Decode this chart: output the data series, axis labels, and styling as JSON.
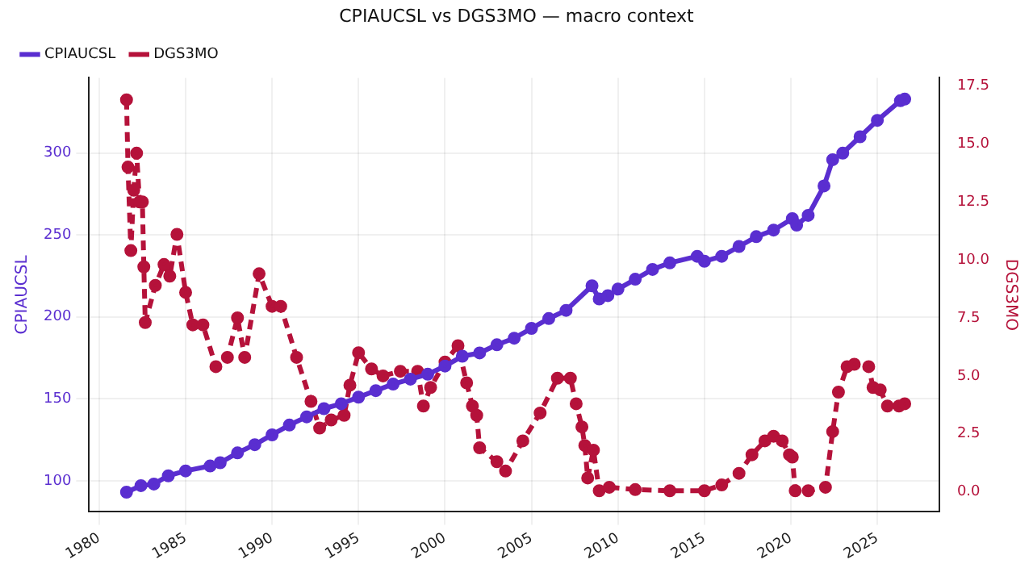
{
  "chart_data": {
    "type": "line",
    "title": "CPIAUCSL vs DGS3MO — macro context",
    "ylabel": "CPIAUCSL",
    "y2label": "DGS3MO",
    "xlim": [
      "1979-06",
      "2028-08"
    ],
    "xticks": [
      "1980",
      "1985",
      "1990",
      "1995",
      "2000",
      "2005",
      "2010",
      "2015",
      "2020",
      "2025"
    ],
    "ylim": [
      81,
      346
    ],
    "yticks": [
      100,
      150,
      200,
      250,
      300
    ],
    "y2lim": [
      -0.86,
      17.85
    ],
    "y2ticks": [
      {
        "value": 0,
        "label": "0.0"
      },
      {
        "value": 2.5,
        "label": "2.5"
      },
      {
        "value": 5,
        "label": "5.0"
      },
      {
        "value": 7.5,
        "label": "7.5"
      },
      {
        "value": 10,
        "label": "10.0"
      },
      {
        "value": 12.5,
        "label": "12.5"
      },
      {
        "value": 15,
        "label": "15.0"
      },
      {
        "value": 17.5,
        "label": "17.5"
      }
    ],
    "grid": true,
    "legend": "top left",
    "marker": "circle",
    "series": [
      {
        "name": "CPIAUCSL",
        "color": "#5a2ed0",
        "axis": "y",
        "line_style": "solid",
        "x": [
          "1981-08",
          "1982-06",
          "1983-03",
          "1984-01",
          "1985-01",
          "1986-06",
          "1987-01",
          "1988-01",
          "1989-01",
          "1990-01",
          "1991-01",
          "1992-01",
          "1993-01",
          "1994-01",
          "1995-01",
          "1996-01",
          "1997-01",
          "1998-01",
          "1999-01",
          "2000-01",
          "2001-01",
          "2002-01",
          "2003-01",
          "2004-01",
          "2005-01",
          "2006-01",
          "2007-01",
          "2008-07",
          "2008-12",
          "2009-06",
          "2010-01",
          "2011-01",
          "2012-01",
          "2013-01",
          "2014-08",
          "2015-01",
          "2016-01",
          "2017-01",
          "2018-01",
          "2019-01",
          "2020-02",
          "2020-05",
          "2021-01",
          "2021-12",
          "2022-06",
          "2023-01",
          "2024-01",
          "2025-01",
          "2026-05",
          "2026-08"
        ],
        "values": [
          93,
          97,
          98,
          103,
          106,
          109,
          111,
          117,
          122,
          128,
          134,
          139,
          144,
          147,
          151,
          155,
          159,
          162,
          165,
          170,
          176,
          178,
          183,
          187,
          193,
          199,
          204,
          219,
          211,
          213,
          217,
          223,
          229,
          233,
          237,
          234,
          237,
          243,
          249,
          253,
          260,
          256,
          262,
          280,
          296,
          300,
          310,
          320,
          332,
          333
        ]
      },
      {
        "name": "DGS3MO",
        "color": "#b5123a",
        "axis": "y2",
        "line_style": "dashed",
        "x": [
          "1981-08",
          "1981-09",
          "1981-11",
          "1982-01",
          "1982-03",
          "1982-05",
          "1982-07",
          "1982-08",
          "1982-09",
          "1983-04",
          "1983-10",
          "1984-02",
          "1984-07",
          "1985-01",
          "1985-06",
          "1986-01",
          "1986-10",
          "1987-06",
          "1988-01",
          "1988-06",
          "1989-04",
          "1990-01",
          "1990-07",
          "1991-06",
          "1992-04",
          "1992-10",
          "1993-06",
          "1994-03",
          "1994-07",
          "1995-01",
          "1995-10",
          "1996-06",
          "1997-06",
          "1998-06",
          "1998-10",
          "1999-03",
          "2000-01",
          "2000-10",
          "2001-04",
          "2001-08",
          "2001-11",
          "2002-01",
          "2003-01",
          "2003-07",
          "2004-07",
          "2005-07",
          "2006-07",
          "2007-04",
          "2007-08",
          "2007-12",
          "2008-02",
          "2008-04",
          "2008-08",
          "2008-12",
          "2009-07",
          "2011-01",
          "2013-01",
          "2015-01",
          "2016-01",
          "2017-01",
          "2017-10",
          "2018-07",
          "2019-01",
          "2019-07",
          "2019-12",
          "2020-02",
          "2020-04",
          "2021-01",
          "2022-01",
          "2022-06",
          "2022-10",
          "2023-04",
          "2023-09",
          "2024-07",
          "2024-10",
          "2025-03",
          "2025-08",
          "2026-04",
          "2026-08"
        ],
        "values": [
          16.9,
          14,
          10.4,
          13,
          14.6,
          12.5,
          12.5,
          9.7,
          7.3,
          8.9,
          9.8,
          9.3,
          11.1,
          8.6,
          7.2,
          7.2,
          5.4,
          5.8,
          7.5,
          5.8,
          9.4,
          8,
          8,
          5.8,
          3.9,
          2.75,
          3.1,
          3.3,
          4.6,
          6,
          5.3,
          5,
          5.2,
          5.2,
          3.7,
          4.5,
          5.6,
          6.3,
          4.7,
          3.7,
          3.3,
          1.9,
          1.3,
          0.9,
          2.2,
          3.4,
          4.9,
          4.9,
          3.8,
          2.8,
          2,
          0.6,
          1.8,
          0.05,
          0.2,
          0.1,
          0.05,
          0.05,
          0.3,
          0.8,
          1.6,
          2.2,
          2.4,
          2.2,
          1.6,
          1.5,
          0.05,
          0.05,
          0.2,
          2.6,
          4.3,
          5.4,
          5.5,
          5.4,
          4.5,
          4.4,
          3.7,
          3.7,
          3.8
        ]
      }
    ]
  }
}
